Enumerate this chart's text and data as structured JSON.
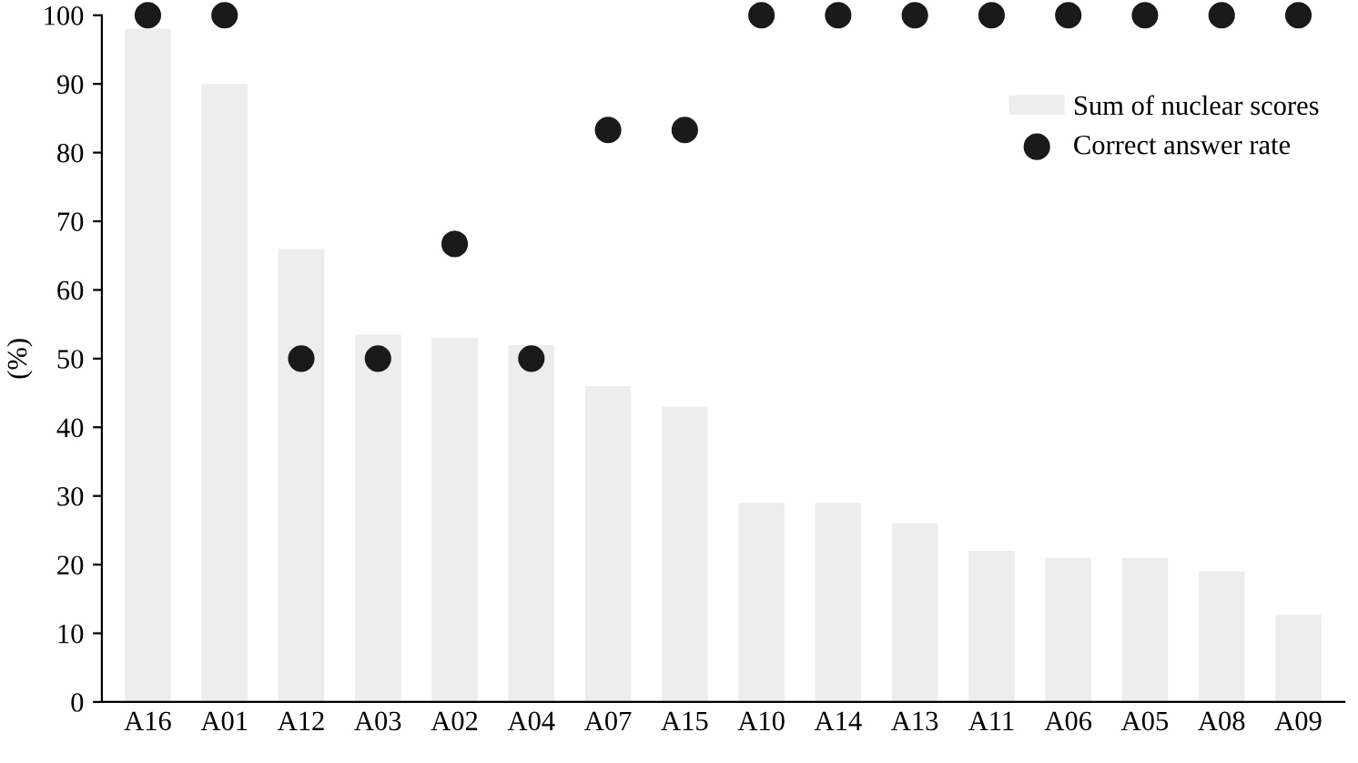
{
  "chart_data": {
    "type": "bar",
    "ylabel": "(%)",
    "categories": [
      "A16",
      "A01",
      "A12",
      "A03",
      "A02",
      "A04",
      "A07",
      "A15",
      "A10",
      "A14",
      "A13",
      "A11",
      "A06",
      "A05",
      "A08",
      "A09"
    ],
    "series": [
      {
        "name": "Sum of nuclear scores",
        "color": "#ededed",
        "values": [
          98,
          90,
          66,
          53.5,
          53,
          52,
          46,
          43,
          29,
          29,
          26,
          22,
          21,
          21,
          19,
          12.7
        ]
      },
      {
        "name": "Correct answer rate",
        "type": "scatter",
        "color": "#1a1a1a",
        "marker": "circle",
        "values": [
          100,
          100,
          50,
          50,
          66.7,
          50,
          83.3,
          83.3,
          100,
          100,
          100,
          100,
          100,
          100,
          100,
          100
        ]
      }
    ],
    "ylim": [
      0,
      100
    ],
    "yticks": [
      0,
      10,
      20,
      30,
      40,
      50,
      60,
      70,
      80,
      90,
      100
    ],
    "grid": false,
    "legend": "top right"
  }
}
